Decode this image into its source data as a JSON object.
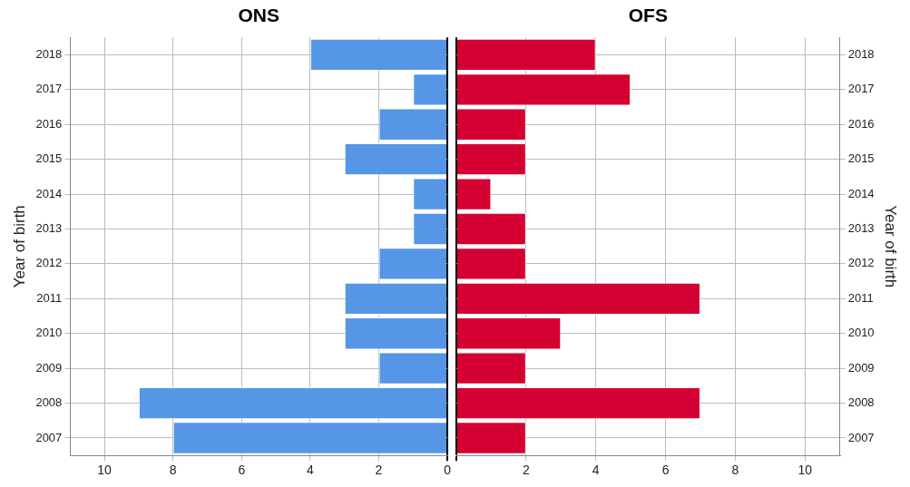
{
  "chart_data": [
    {
      "type": "bar",
      "orientation": "horizontal",
      "title": "ONS",
      "ylabel": "Year of birth",
      "categories": [
        "2018",
        "2017",
        "2016",
        "2015",
        "2014",
        "2013",
        "2012",
        "2011",
        "2010",
        "2009",
        "2008",
        "2007"
      ],
      "series": [
        {
          "color": "#5596e6",
          "values": [
            4,
            1,
            2,
            3,
            1,
            1,
            2,
            3,
            3,
            2,
            9,
            8
          ]
        }
      ],
      "xlim": [
        11,
        0
      ],
      "xticks": [
        10,
        8,
        6,
        4,
        2,
        0
      ],
      "grid": true
    },
    {
      "type": "bar",
      "orientation": "horizontal",
      "title": "OFS",
      "ylabel": "Year of birth",
      "categories": [
        "2018",
        "2017",
        "2016",
        "2015",
        "2014",
        "2013",
        "2012",
        "2011",
        "2010",
        "2009",
        "2008",
        "2007"
      ],
      "series": [
        {
          "color": "#d50032",
          "values": [
            4,
            5,
            2,
            2,
            1,
            2,
            2,
            7,
            3,
            2,
            7,
            2
          ]
        }
      ],
      "xlim": [
        0,
        11
      ],
      "xticks": [
        {
          "value": 0,
          "label": null
        },
        2,
        4,
        6,
        8,
        10
      ],
      "grid": true
    }
  ]
}
